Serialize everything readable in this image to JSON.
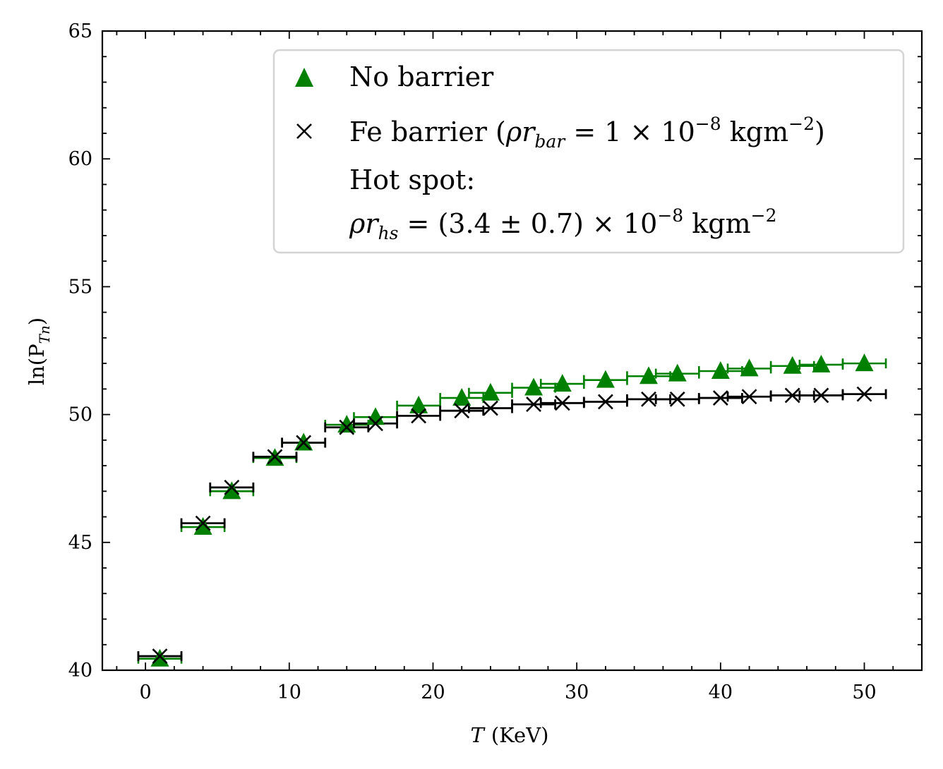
{
  "chart_data": {
    "type": "scatter",
    "xlabel": "T (KeV)",
    "xlabel_italic_part": "T",
    "xlabel_unit_part": "(KeV)",
    "ylabel": "ln(P_Tn)",
    "ylabel_text": "ln(P",
    "ylabel_sub": "Tn",
    "ylabel_close": ")",
    "xlim": [
      -3,
      54
    ],
    "ylim": [
      40,
      65
    ],
    "x_ticks": [
      "0",
      "10",
      "20",
      "30",
      "40",
      "50"
    ],
    "y_ticks": [
      "40",
      "45",
      "50",
      "55",
      "60",
      "65"
    ],
    "grid": false,
    "legend_position": "top-right",
    "series": [
      {
        "name": "No barrier",
        "marker": "triangle",
        "color": "#008000",
        "points": [
          {
            "x": 1,
            "y": 40.45,
            "xerr": [
              1.5,
              1.5
            ]
          },
          {
            "x": 4,
            "y": 45.6,
            "xerr": [
              1.5,
              1.5
            ]
          },
          {
            "x": 6,
            "y": 47.0,
            "xerr": [
              1.5,
              1.5
            ]
          },
          {
            "x": 9,
            "y": 48.3,
            "xerr": [
              1.5,
              1.5
            ]
          },
          {
            "x": 11,
            "y": 48.9,
            "xerr": [
              1.5,
              1.5
            ]
          },
          {
            "x": 14,
            "y": 49.6,
            "xerr": [
              1.5,
              1.5
            ]
          },
          {
            "x": 16,
            "y": 49.9,
            "xerr": [
              1.5,
              1.5
            ]
          },
          {
            "x": 19,
            "y": 50.35,
            "xerr": [
              1.5,
              1.5
            ]
          },
          {
            "x": 22,
            "y": 50.65,
            "xerr": [
              1.5,
              1.5
            ]
          },
          {
            "x": 24,
            "y": 50.85,
            "xerr": [
              1.5,
              1.5
            ]
          },
          {
            "x": 27,
            "y": 51.05,
            "xerr": [
              1.5,
              1.5
            ]
          },
          {
            "x": 29,
            "y": 51.2,
            "xerr": [
              1.5,
              1.5
            ]
          },
          {
            "x": 32,
            "y": 51.35,
            "xerr": [
              1.5,
              1.5
            ]
          },
          {
            "x": 35,
            "y": 51.5,
            "xerr": [
              1.5,
              1.5
            ]
          },
          {
            "x": 37,
            "y": 51.6,
            "xerr": [
              1.5,
              1.5
            ]
          },
          {
            "x": 40,
            "y": 51.7,
            "xerr": [
              1.5,
              1.5
            ]
          },
          {
            "x": 42,
            "y": 51.8,
            "xerr": [
              1.5,
              1.5
            ]
          },
          {
            "x": 45,
            "y": 51.9,
            "xerr": [
              1.5,
              1.5
            ]
          },
          {
            "x": 47,
            "y": 51.95,
            "xerr": [
              1.5,
              1.5
            ]
          },
          {
            "x": 50,
            "y": 52.0,
            "xerr": [
              1.5,
              1.5
            ]
          }
        ]
      },
      {
        "name": "Fe barrier (ρr_bar = 1 × 10^-8 kgm^-2)",
        "marker": "x",
        "color": "#000000",
        "points": [
          {
            "x": 1,
            "y": 40.55,
            "xerr": [
              1.5,
              1.5
            ]
          },
          {
            "x": 4,
            "y": 45.75,
            "xerr": [
              1.5,
              1.5
            ]
          },
          {
            "x": 6,
            "y": 47.15,
            "xerr": [
              1.5,
              1.5
            ]
          },
          {
            "x": 9,
            "y": 48.35,
            "xerr": [
              1.5,
              1.5
            ]
          },
          {
            "x": 11,
            "y": 48.9,
            "xerr": [
              1.5,
              1.5
            ]
          },
          {
            "x": 14,
            "y": 49.5,
            "xerr": [
              1.5,
              1.5
            ]
          },
          {
            "x": 16,
            "y": 49.65,
            "xerr": [
              1.5,
              1.5
            ]
          },
          {
            "x": 19,
            "y": 49.95,
            "xerr": [
              1.5,
              1.5
            ]
          },
          {
            "x": 22,
            "y": 50.15,
            "xerr": [
              1.5,
              1.5
            ]
          },
          {
            "x": 24,
            "y": 50.25,
            "xerr": [
              1.5,
              1.5
            ]
          },
          {
            "x": 27,
            "y": 50.4,
            "xerr": [
              1.5,
              1.5
            ]
          },
          {
            "x": 29,
            "y": 50.45,
            "xerr": [
              1.5,
              1.5
            ]
          },
          {
            "x": 32,
            "y": 50.5,
            "xerr": [
              1.5,
              1.5
            ]
          },
          {
            "x": 35,
            "y": 50.6,
            "xerr": [
              1.5,
              1.5
            ]
          },
          {
            "x": 37,
            "y": 50.6,
            "xerr": [
              1.5,
              1.5
            ]
          },
          {
            "x": 40,
            "y": 50.65,
            "xerr": [
              1.5,
              1.5
            ]
          },
          {
            "x": 42,
            "y": 50.7,
            "xerr": [
              1.5,
              1.5
            ]
          },
          {
            "x": 45,
            "y": 50.75,
            "xerr": [
              1.5,
              1.5
            ]
          },
          {
            "x": 47,
            "y": 50.75,
            "xerr": [
              1.5,
              1.5
            ]
          },
          {
            "x": 50,
            "y": 50.8,
            "xerr": [
              1.5,
              1.5
            ]
          }
        ]
      }
    ],
    "legend": {
      "entries": [
        {
          "label": "No barrier",
          "marker": "triangle",
          "color": "#008000"
        },
        {
          "label_parts": [
            "Fe barrier (",
            "ρr",
            "bar",
            " = 1 × 10",
            "−8",
            " kgm",
            "−2",
            ")"
          ],
          "marker": "x",
          "color": "#000000"
        }
      ],
      "note_line1": "Hot spot:",
      "note_line2_parts": [
        "ρr",
        "hs",
        " = (3.4 ± 0.7) × 10",
        "−8",
        " kgm",
        "−2"
      ]
    }
  }
}
